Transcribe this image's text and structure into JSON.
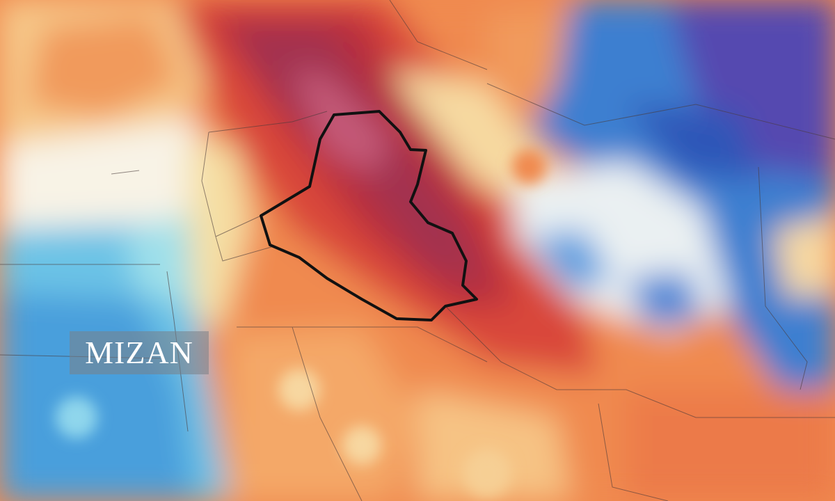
{
  "watermark": "MIZAN"
}
